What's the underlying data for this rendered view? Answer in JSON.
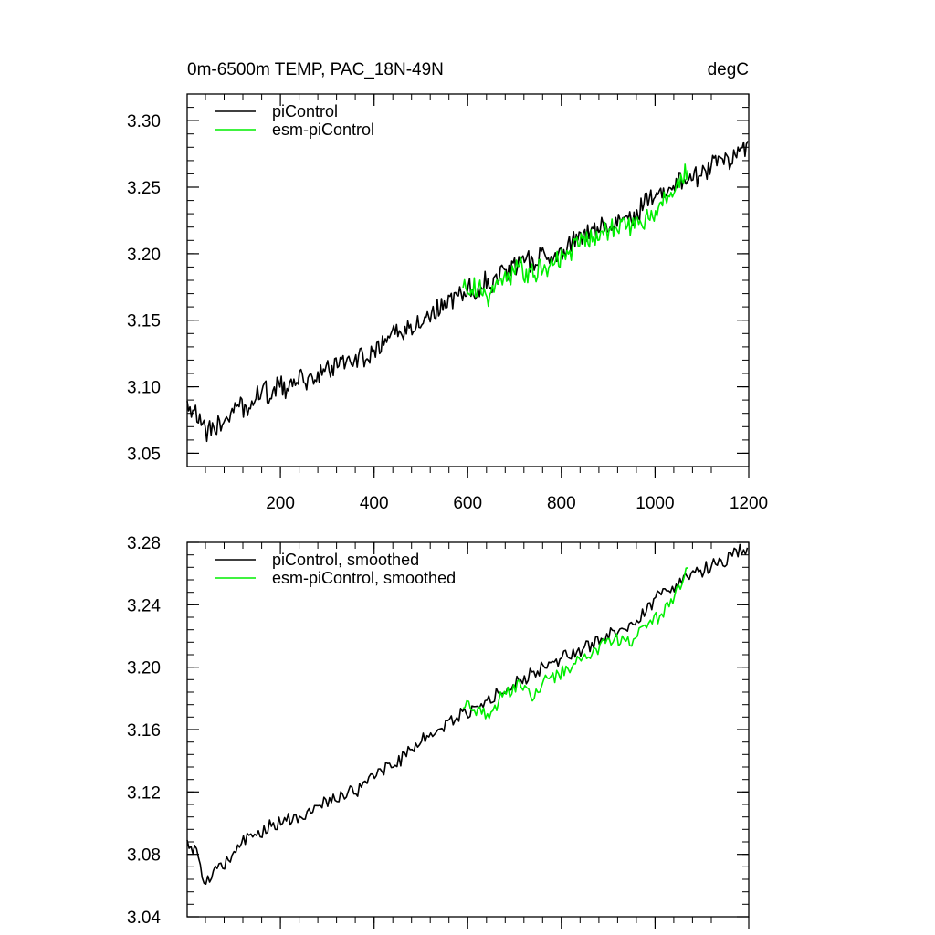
{
  "chart_data": [
    {
      "type": "line",
      "title_left": "0m-6500m TEMP, PAC_18N-49N",
      "title_right": "degC",
      "xlabel": "",
      "ylabel": "",
      "xlim": [
        1,
        1200
      ],
      "ylim": [
        3.04,
        3.32
      ],
      "x_ticks": [
        200,
        400,
        600,
        800,
        1000,
        1200
      ],
      "x_tick_labels": [
        "200",
        "400",
        "600",
        "800",
        "1000",
        "1200"
      ],
      "y_ticks": [
        3.05,
        3.1,
        3.15,
        3.2,
        3.25,
        3.3
      ],
      "y_tick_labels": [
        "3.05",
        "3.10",
        "3.15",
        "3.20",
        "3.25",
        "3.30"
      ],
      "grid": false,
      "legend_position": "top-left",
      "series": [
        {
          "name": "piControl",
          "color": "#000000",
          "x": [
            1,
            20,
            40,
            60,
            80,
            100,
            150,
            200,
            250,
            300,
            350,
            400,
            450,
            500,
            550,
            600,
            650,
            700,
            750,
            800,
            850,
            900,
            950,
            1000,
            1050,
            1100,
            1150,
            1200
          ],
          "values": [
            3.088,
            3.085,
            3.062,
            3.068,
            3.075,
            3.08,
            3.092,
            3.099,
            3.104,
            3.111,
            3.118,
            3.127,
            3.14,
            3.152,
            3.163,
            3.172,
            3.18,
            3.19,
            3.198,
            3.206,
            3.212,
            3.221,
            3.228,
            3.245,
            3.255,
            3.262,
            3.27,
            3.28
          ]
        },
        {
          "name": "esm-piControl",
          "color": "#00ee00",
          "x": [
            590,
            620,
            650,
            680,
            710,
            740,
            770,
            800,
            830,
            860,
            890,
            920,
            950,
            980,
            1010,
            1040,
            1070
          ],
          "values": [
            3.176,
            3.174,
            3.17,
            3.186,
            3.188,
            3.182,
            3.192,
            3.196,
            3.205,
            3.21,
            3.214,
            3.22,
            3.219,
            3.226,
            3.234,
            3.244,
            3.262
          ]
        }
      ]
    },
    {
      "type": "line",
      "title_left": "",
      "title_right": "",
      "xlabel": "",
      "ylabel": "",
      "xlim": [
        1,
        1200
      ],
      "ylim": [
        3.04,
        3.28
      ],
      "x_ticks": [
        200,
        400,
        600,
        800,
        1000,
        1200
      ],
      "x_tick_labels": [],
      "y_ticks": [
        3.04,
        3.08,
        3.12,
        3.16,
        3.2,
        3.24,
        3.28
      ],
      "y_tick_labels": [
        "3.04",
        "3.08",
        "3.12",
        "3.16",
        "3.20",
        "3.24",
        "3.28"
      ],
      "grid": false,
      "legend_position": "top-left",
      "series": [
        {
          "name": "piControl, smoothed",
          "color": "#000000",
          "x": [
            1,
            20,
            30,
            40,
            60,
            80,
            100,
            150,
            200,
            250,
            300,
            350,
            400,
            450,
            500,
            550,
            600,
            650,
            700,
            750,
            800,
            850,
            900,
            950,
            1000,
            1050,
            1100,
            1150,
            1200
          ],
          "values": [
            3.087,
            3.084,
            3.07,
            3.062,
            3.07,
            3.076,
            3.082,
            3.094,
            3.101,
            3.106,
            3.112,
            3.119,
            3.128,
            3.141,
            3.152,
            3.163,
            3.172,
            3.18,
            3.189,
            3.197,
            3.205,
            3.211,
            3.22,
            3.228,
            3.243,
            3.253,
            3.262,
            3.27,
            3.278
          ]
        },
        {
          "name": "esm-piControl, smoothed",
          "color": "#00ee00",
          "x": [
            590,
            620,
            650,
            680,
            710,
            740,
            770,
            800,
            830,
            860,
            890,
            920,
            950,
            980,
            1010,
            1040,
            1070
          ],
          "values": [
            3.175,
            3.172,
            3.168,
            3.185,
            3.187,
            3.181,
            3.191,
            3.195,
            3.204,
            3.209,
            3.213,
            3.219,
            3.218,
            3.225,
            3.233,
            3.243,
            3.263
          ]
        }
      ]
    }
  ]
}
